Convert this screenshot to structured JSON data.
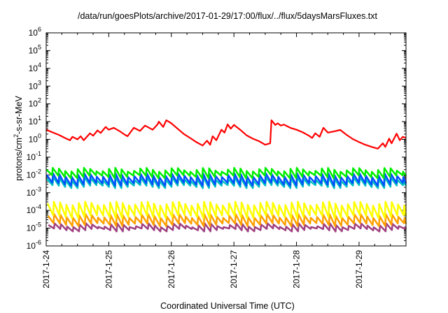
{
  "chart_data": {
    "type": "line",
    "title": "/data/run/goesPlots/archive/2017-01-29/17:00/flux/../flux/5daysMarsFluxes.txt",
    "xlabel": "Coordinated Universal Time (UTC)",
    "ylabel_main": "protons/cm",
    "ylabel_sup": "2",
    "ylabel_rest": "-s-sr-MeV",
    "yscale": "log",
    "ylim_exp": [
      -6,
      6
    ],
    "y_tick_base": "10",
    "y_tick_exponents": [
      "-6",
      "-5",
      "-4",
      "-3",
      "-2",
      "-1",
      "0",
      "1",
      "2",
      "3",
      "4",
      "5",
      "6"
    ],
    "xlim": [
      0,
      5.75
    ],
    "x_ticks": [
      {
        "pos": 0,
        "label": "2017-1-24"
      },
      {
        "pos": 1,
        "label": "2017-1-25"
      },
      {
        "pos": 2,
        "label": "2017-1-26"
      },
      {
        "pos": 3,
        "label": "2017-1-27"
      },
      {
        "pos": 4,
        "label": "2017-1-28"
      },
      {
        "pos": 5,
        "label": "2017-1-29"
      }
    ],
    "colors": {
      "red": "#ff0000",
      "green": "#00ee00",
      "cyan": "#00c0c0",
      "blue": "#0050ff",
      "yellow": "#ffff00",
      "orange": "#ffa000",
      "purple": "#a04080"
    },
    "series": [
      {
        "color": "red",
        "x": [
          0,
          0.1,
          0.2,
          0.3,
          0.38,
          0.42,
          0.5,
          0.55,
          0.6,
          0.7,
          0.75,
          0.82,
          0.87,
          0.95,
          1.0,
          1.08,
          1.18,
          1.25,
          1.3,
          1.4,
          1.5,
          1.58,
          1.7,
          1.78,
          1.8,
          1.87,
          1.92,
          2.0,
          2.1,
          2.2,
          2.3,
          2.4,
          2.5,
          2.57,
          2.62,
          2.66,
          2.72,
          2.8,
          2.85,
          2.9,
          2.95,
          3.0,
          3.1,
          3.2,
          3.3,
          3.4,
          3.5,
          3.58,
          3.6,
          3.66,
          3.7,
          3.75,
          3.8,
          3.9,
          4.0,
          4.1,
          4.2,
          4.25,
          4.3,
          4.37,
          4.43,
          4.5,
          4.6,
          4.7,
          4.8,
          4.9,
          5.0,
          5.1,
          5.2,
          5.3,
          5.38,
          5.42,
          5.48,
          5.52,
          5.6,
          5.65,
          5.7,
          5.75
        ],
        "y": [
          3.5,
          2.5,
          1.8,
          1.2,
          0.9,
          1.4,
          1.0,
          1.5,
          0.9,
          2.2,
          1.6,
          3.2,
          2.3,
          5,
          3.5,
          4.5,
          2.8,
          1.9,
          1.5,
          4.5,
          3,
          6,
          3.5,
          7,
          10,
          5,
          12,
          8,
          4,
          2,
          1.2,
          0.7,
          0.45,
          0.85,
          0.5,
          1.5,
          0.9,
          3.5,
          2.4,
          7,
          4,
          6.5,
          3.5,
          1.7,
          1.1,
          0.8,
          0.5,
          0.6,
          12,
          6.5,
          8,
          6,
          6.8,
          4.5,
          3.5,
          2.5,
          1.6,
          1.2,
          2.2,
          1.4,
          4.5,
          2.4,
          2.8,
          3.4,
          1.8,
          1.05,
          0.7,
          0.5,
          0.38,
          0.3,
          0.6,
          0.38,
          1.1,
          0.6,
          2.1,
          0.9,
          1.4,
          1.2
        ]
      }
    ]
  }
}
